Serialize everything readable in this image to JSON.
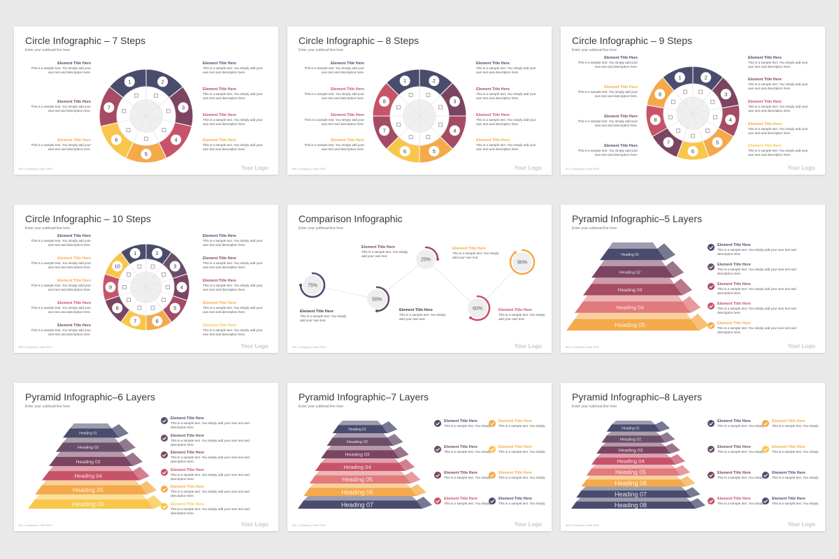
{
  "colors": {
    "navy": "#4a4c6e",
    "purple": "#6a4f6b",
    "plum": "#7b4562",
    "rose": "#a64b64",
    "red": "#c7536a",
    "coral": "#e07a7c",
    "orange": "#f4a94b",
    "yellow": "#f8c64a",
    "gold": "#f7b84b"
  },
  "common": {
    "subhead": "Enter your subhead line here",
    "logo": "Your Logo",
    "footer": "| Company | Date 2020",
    "el_title": "Element Title Here",
    "el_desc": "This is a sample text. You simply add your own text and description here.",
    "cmp_desc": "This is a sample text. You simply add your own text.",
    "short_desc": "This is a sample text. You simply."
  },
  "slides": [
    {
      "title": "Circle Infographic – 7 Steps",
      "page": "155"
    },
    {
      "title": "Circle Infographic – 8 Steps",
      "page": "156"
    },
    {
      "title": "Circle Infographic – 9 Steps",
      "page": "157"
    },
    {
      "title": "Circle Infographic – 10 Steps",
      "page": "158"
    },
    {
      "title": "Comparison Infographic",
      "page": "159"
    },
    {
      "title": "Pyramid Infographic–5 Layers",
      "page": "160"
    },
    {
      "title": "Pyramid Infographic–6 Layers",
      "page": "161"
    },
    {
      "title": "Pyramid Infographic–7 Layers",
      "page": "162"
    },
    {
      "title": "Pyramid Infographic–8 Layers",
      "page": "163"
    }
  ],
  "comparison": {
    "values": [
      "75%",
      "50%",
      "25%",
      "60%",
      "90%"
    ],
    "fractions": [
      0.75,
      0.5,
      0.25,
      0.6,
      0.9
    ]
  },
  "pyramid_headings": [
    "Heading 01",
    "Heading 02",
    "Heading 03",
    "Heading 04",
    "Heading 05",
    "Heading 06",
    "Heading 07",
    "Heading 08"
  ]
}
